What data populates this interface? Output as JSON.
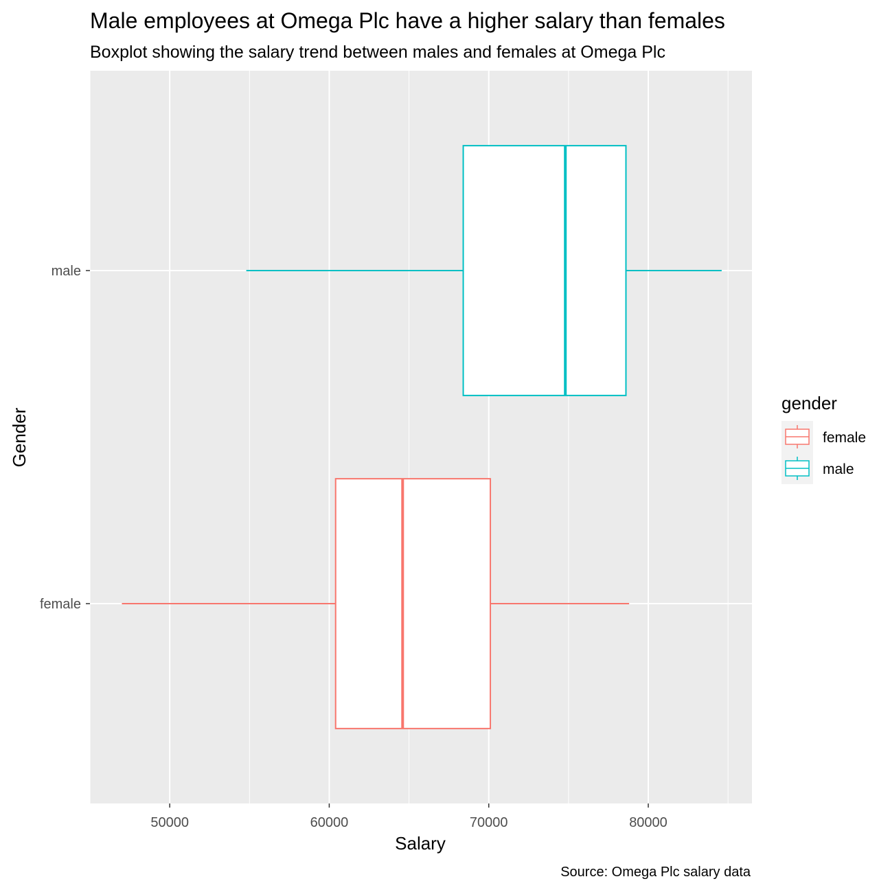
{
  "chart_data": {
    "type": "boxplot",
    "orientation": "horizontal",
    "title": "Male employees at Omega Plc have a higher salary than females",
    "subtitle": "Boxplot showing the salary trend between males and females at Omega Plc",
    "caption": "Source: Omega Plc salary data",
    "xlabel": "Salary",
    "ylabel": "Gender",
    "xlim": [
      45000,
      86500
    ],
    "x_ticks": [
      50000,
      60000,
      70000,
      80000
    ],
    "x_tick_labels": [
      "50000",
      "60000",
      "70000",
      "80000"
    ],
    "categories": [
      "female",
      "male"
    ],
    "grid": true,
    "legend": {
      "title": "gender",
      "position": "right",
      "entries": [
        "female",
        "male"
      ]
    },
    "series": [
      {
        "name": "female",
        "color": "#F8766D",
        "min": 47000,
        "q1": 60400,
        "median": 64600,
        "q3": 70100,
        "max": 78800
      },
      {
        "name": "male",
        "color": "#00BFC4",
        "min": 54800,
        "q1": 68400,
        "median": 74800,
        "q3": 78600,
        "max": 84600
      }
    ],
    "panel_background": "#EBEBEB",
    "grid_color": "#FFFFFF"
  }
}
